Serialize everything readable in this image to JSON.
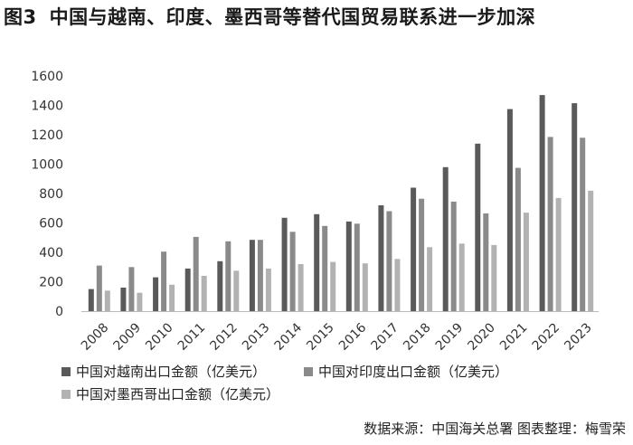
{
  "title": {
    "figure_no": "图3",
    "text": "中国与越南、印度、墨西哥等替代国贸易联系进一步加深"
  },
  "source_note": "数据来源：中国海关总署 图表整理：梅雪荣",
  "chart_data": {
    "type": "bar",
    "title": "中国与越南、印度、墨西哥等替代国贸易联系进一步加深",
    "xlabel": "",
    "ylabel": "",
    "ylim": [
      0,
      1600
    ],
    "yticks": [
      0,
      200,
      400,
      600,
      800,
      1000,
      1200,
      1400,
      1600
    ],
    "grid": false,
    "legend_position": "bottom",
    "categories": [
      "2008",
      "2009",
      "2010",
      "2011",
      "2012",
      "2013",
      "2014",
      "2015",
      "2016",
      "2017",
      "2018",
      "2019",
      "2020",
      "2021",
      "2022",
      "2023"
    ],
    "series": [
      {
        "name": "中国对越南出口金额（亿美元）",
        "color": "#5a5a5a",
        "values": [
          150,
          160,
          230,
          290,
          340,
          485,
          635,
          660,
          610,
          720,
          840,
          980,
          1140,
          1375,
          1470,
          1415
        ]
      },
      {
        "name": "中国对印度出口金额（亿美元）",
        "color": "#8a8a8a",
        "values": [
          310,
          300,
          405,
          505,
          475,
          485,
          540,
          580,
          595,
          680,
          765,
          745,
          665,
          975,
          1185,
          1180
        ]
      },
      {
        "name": "中国对墨西哥出口金额（亿美元）",
        "color": "#b2b2b2",
        "values": [
          140,
          125,
          180,
          240,
          275,
          290,
          320,
          335,
          325,
          355,
          435,
          460,
          450,
          670,
          770,
          820
        ]
      }
    ]
  }
}
